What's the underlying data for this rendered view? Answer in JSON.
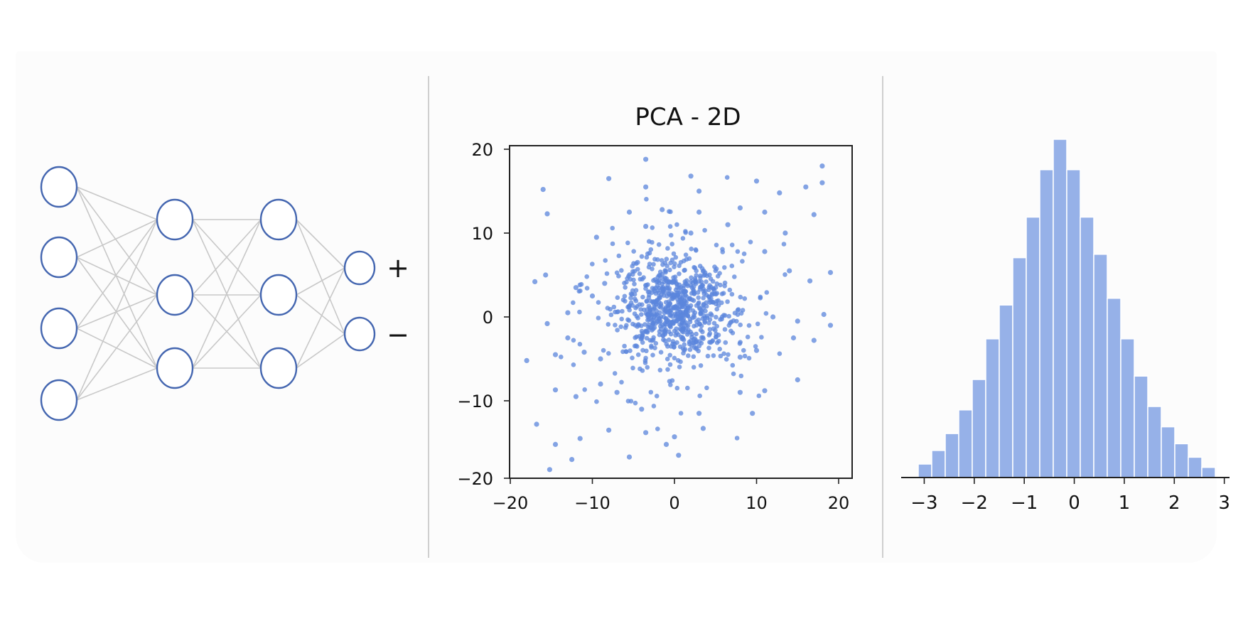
{
  "colors": {
    "node_stroke": "#4466b0",
    "edge": "#c8c8c8",
    "divider": "#cfcfcf",
    "scatter_point": "#5b85dc",
    "bar_fill": "#96b1e8",
    "bar_stroke": "#ffffff",
    "axis": "#222222",
    "card_bg": "#fcfcfc"
  },
  "network": {
    "layers": [
      4,
      3,
      3,
      2
    ],
    "output_labels": [
      "+",
      "−"
    ]
  },
  "chart_data": [
    {
      "type": "scatter",
      "title": "PCA - 2D",
      "xlabel": "",
      "ylabel": "",
      "xlim": [
        -20,
        20
      ],
      "ylim": [
        -20,
        20
      ],
      "xticks": [
        -20,
        -10,
        0,
        10,
        20
      ],
      "yticks": [
        -20,
        -10,
        0,
        10,
        20
      ],
      "xtick_labels": [
        "−20",
        "−10",
        "0",
        "10",
        "20"
      ],
      "ytick_labels": [
        "−20",
        "−10",
        "0",
        "10",
        "20"
      ],
      "grid": false,
      "description": "~900 points, dense Gaussian core centered near (0, 1) with sparse outliers out to ±20",
      "center": [
        0,
        1
      ],
      "n_points": 900,
      "outliers": [
        [
          -3.5,
          18.8
        ],
        [
          2,
          16.8
        ],
        [
          -8,
          16.5
        ],
        [
          -16,
          15.2
        ],
        [
          -3.5,
          15.5
        ],
        [
          3,
          15
        ],
        [
          10,
          16.2
        ],
        [
          18,
          18
        ],
        [
          -15.5,
          12.3
        ],
        [
          -5.5,
          12.5
        ],
        [
          -1.5,
          12.8
        ],
        [
          3,
          12.5
        ],
        [
          8,
          13
        ],
        [
          12.8,
          14.8
        ],
        [
          16,
          15.5
        ],
        [
          18,
          16
        ],
        [
          -9.5,
          9.5
        ],
        [
          -3.5,
          10.8
        ],
        [
          2,
          10
        ],
        [
          6.5,
          11
        ],
        [
          11,
          12.5
        ],
        [
          17,
          12.2
        ],
        [
          13.5,
          10
        ],
        [
          -17,
          4.2
        ],
        [
          -15.7,
          5
        ],
        [
          -12,
          3.5
        ],
        [
          -8.5,
          4
        ],
        [
          -4.5,
          6.5
        ],
        [
          11,
          7.8
        ],
        [
          14,
          5.5
        ],
        [
          16.5,
          4.3
        ],
        [
          19,
          5.3
        ],
        [
          -15.5,
          -0.8
        ],
        [
          -13,
          0.5
        ],
        [
          -10,
          2.5
        ],
        [
          12,
          0
        ],
        [
          15,
          -0.5
        ],
        [
          18.2,
          0.3
        ],
        [
          19,
          -1
        ],
        [
          -18,
          -5.2
        ],
        [
          -14.5,
          -4.5
        ],
        [
          -13,
          -2.5
        ],
        [
          -11,
          -4.2
        ],
        [
          -9,
          -5
        ],
        [
          8,
          -4.8
        ],
        [
          10,
          -4
        ],
        [
          14.5,
          -2.5
        ],
        [
          17,
          -2.8
        ],
        [
          -14.5,
          -8.7
        ],
        [
          -12,
          -9.5
        ],
        [
          -9,
          -8
        ],
        [
          -7,
          -9
        ],
        [
          8,
          -9
        ],
        [
          15,
          -7.5
        ],
        [
          -16.8,
          -12.8
        ],
        [
          -14.5,
          -15.2
        ],
        [
          -11.5,
          -14.5
        ],
        [
          -8,
          -13.5
        ],
        [
          -3.5,
          -13.8
        ],
        [
          0,
          -14.3
        ],
        [
          3.5,
          -13.3
        ],
        [
          -15.2,
          -18.2
        ],
        [
          -12.5,
          -17
        ],
        [
          -5.5,
          -16.7
        ],
        [
          -1,
          -15.2
        ],
        [
          0.5,
          -16.5
        ],
        [
          -4,
          -11
        ],
        [
          3,
          -11.5
        ],
        [
          9.5,
          -11.5
        ],
        [
          11,
          -8.8
        ]
      ]
    },
    {
      "type": "bar",
      "subtype": "histogram",
      "title": "",
      "xlabel": "",
      "ylabel": "",
      "xlim": [
        -3.2,
        3.2
      ],
      "xticks": [
        -3,
        -2,
        -1,
        0,
        1,
        2,
        3
      ],
      "xtick_labels": [
        "−3",
        "−2",
        "−1",
        "0",
        "1",
        "2",
        "3"
      ],
      "bin_edges": [
        -3.12,
        -2.85,
        -2.58,
        -2.31,
        -2.04,
        -1.77,
        -1.5,
        -1.23,
        -0.96,
        -0.69,
        -0.42,
        -0.15,
        0.12,
        0.39,
        0.66,
        0.93,
        1.2,
        1.47,
        1.74,
        2.01,
        2.28,
        2.55,
        2.82
      ],
      "values": [
        4,
        8,
        13,
        20,
        29,
        41,
        51,
        65,
        77,
        91,
        100,
        91,
        77,
        66,
        53,
        41,
        30,
        21,
        15,
        10,
        6,
        3
      ],
      "grid": false,
      "yaxis_visible": false
    }
  ]
}
